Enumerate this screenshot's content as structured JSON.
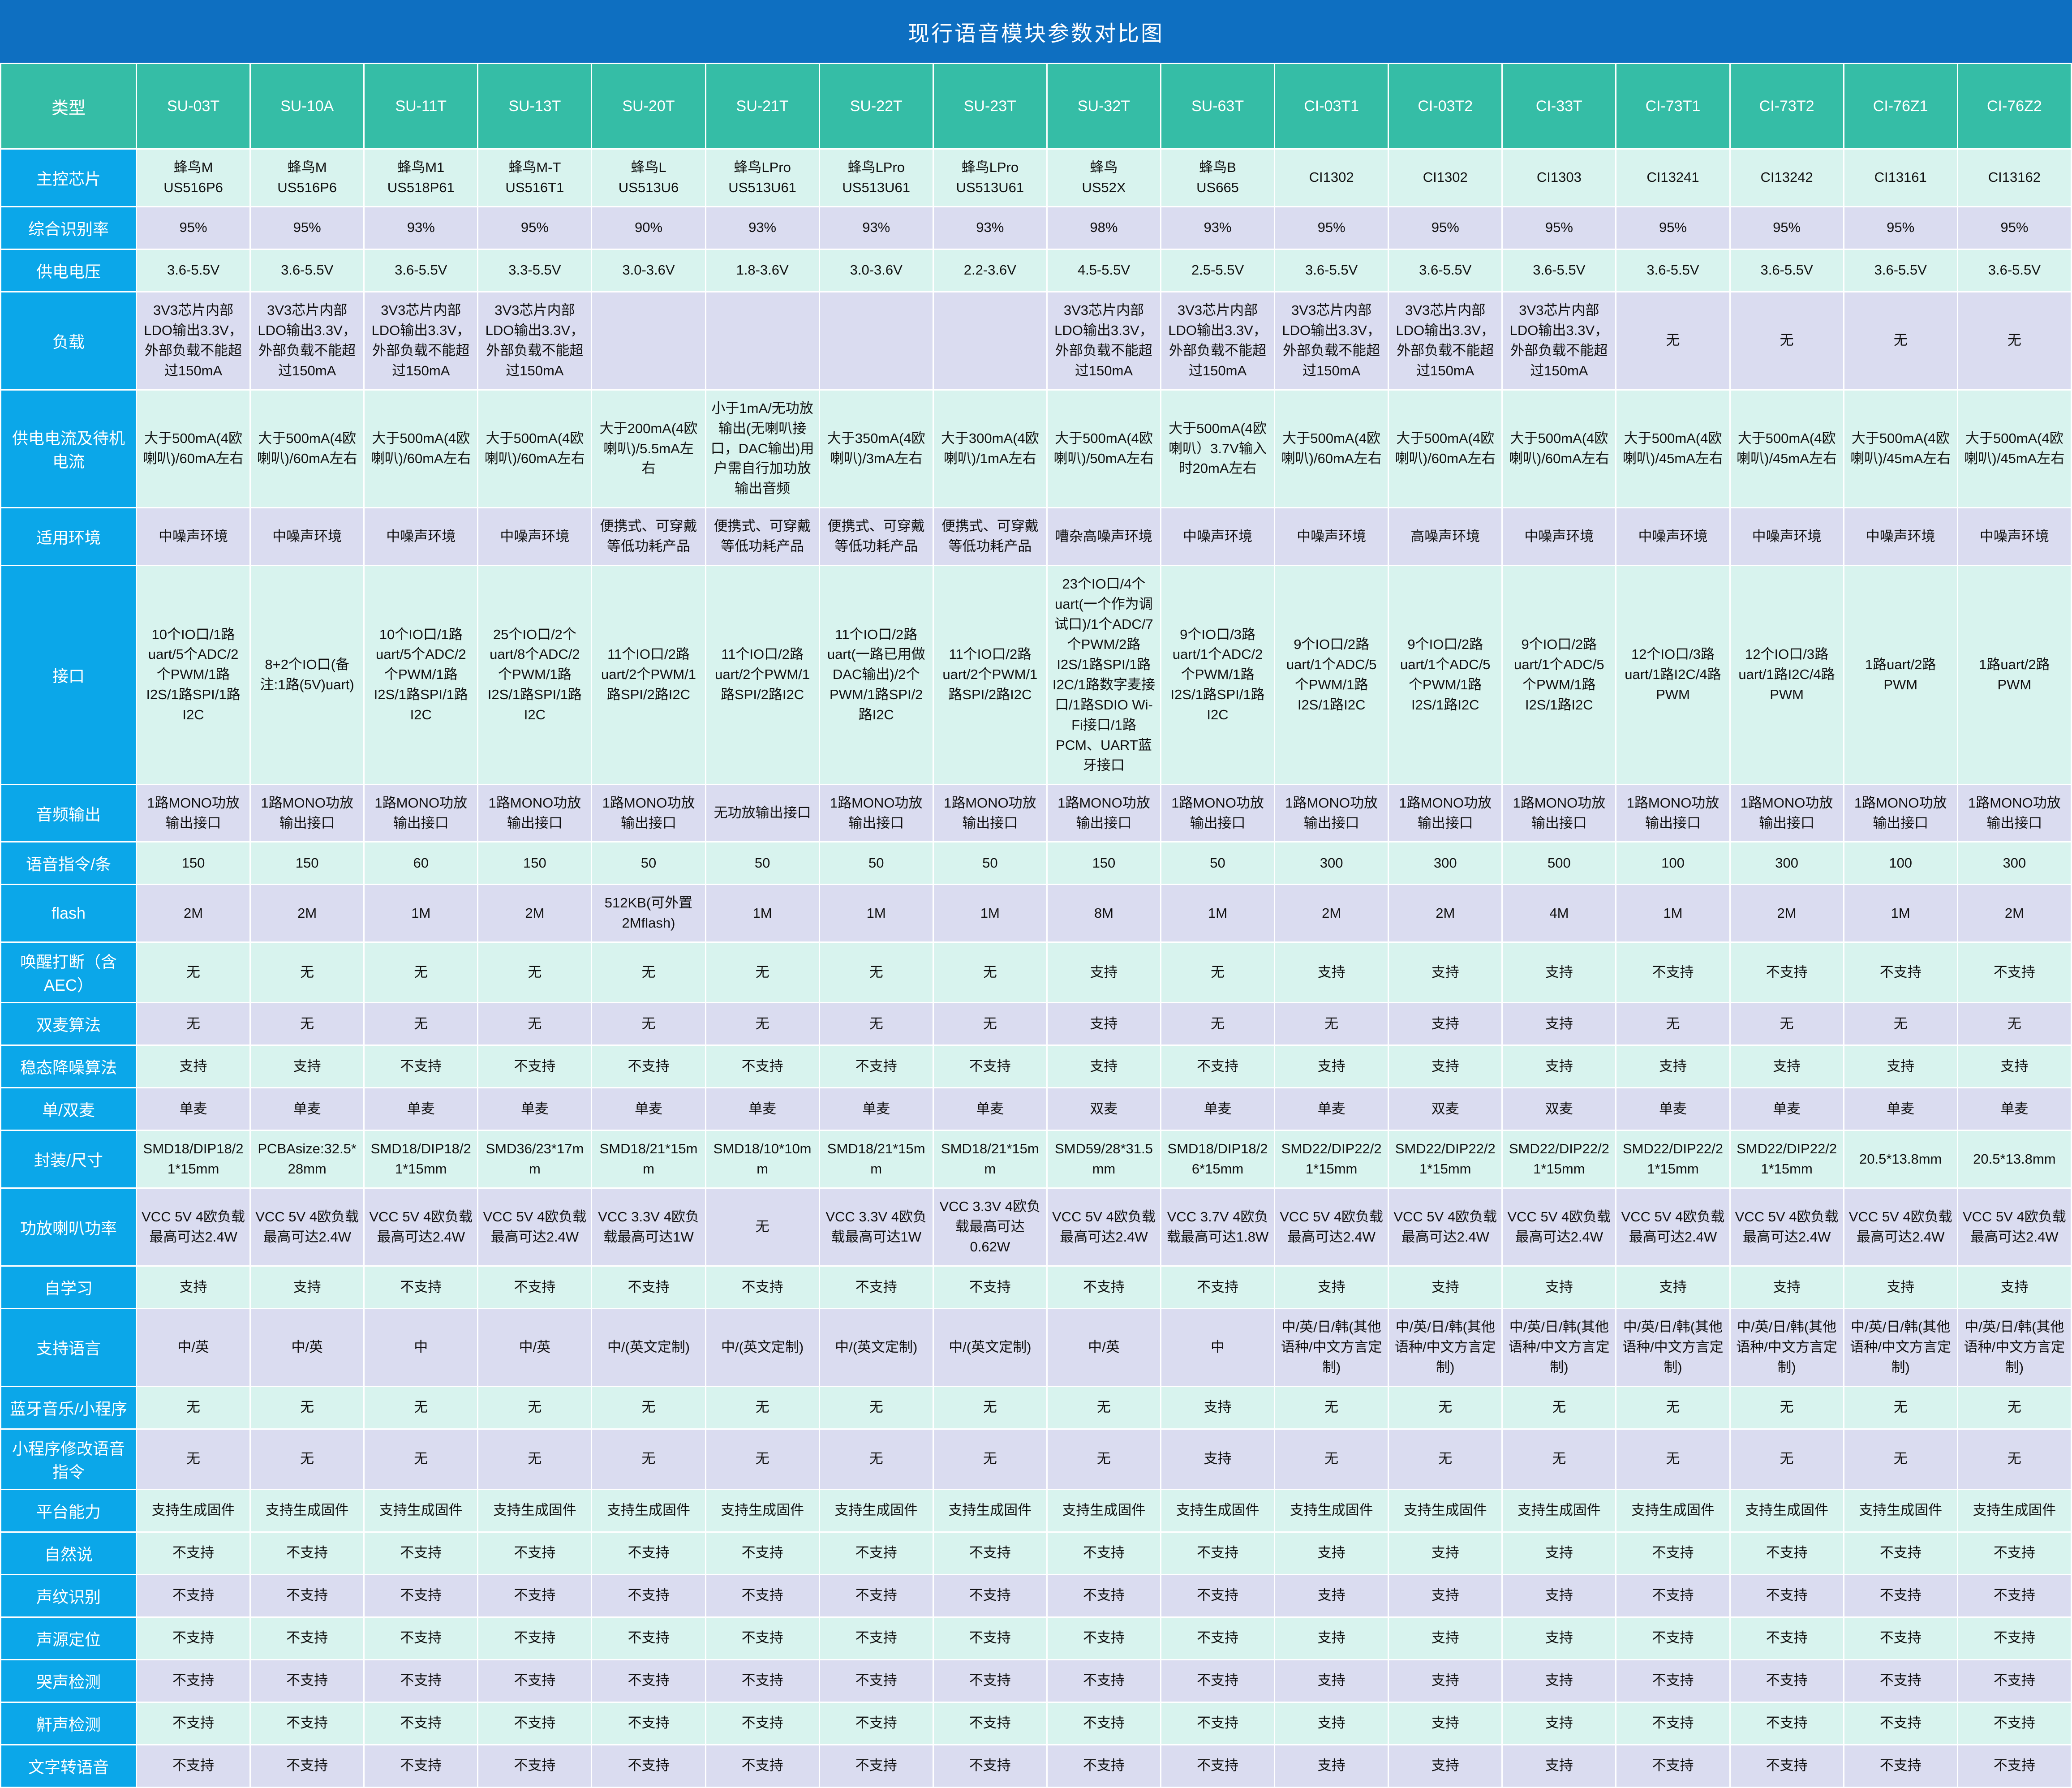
{
  "title": "现行语音模块参数对比图",
  "colors": {
    "title_bar": "#0e6fc1",
    "header": "#35bda6",
    "label_col": "#0ba7e9",
    "row_mint": "#d8f3ee",
    "row_lavender": "#dadcf0",
    "grid": "#ffffff",
    "cell_text": "#111111"
  },
  "table": {
    "corner_label": "类型",
    "columns": [
      "SU-03T",
      "SU-10A",
      "SU-11T",
      "SU-13T",
      "SU-20T",
      "SU-21T",
      "SU-22T",
      "SU-23T",
      "SU-32T",
      "SU-63T",
      "CI-03T1",
      "CI-03T2",
      "CI-33T",
      "CI-73T1",
      "CI-73T2",
      "CI-76Z1",
      "CI-76Z2"
    ],
    "rows": [
      {
        "key": "main-chip",
        "label": "主控芯片",
        "shade": "mint",
        "cells": [
          "蜂鸟M\nUS516P6",
          "蜂鸟M\nUS516P6",
          "蜂鸟M1\nUS518P61",
          "蜂鸟M-T\nUS516T1",
          "蜂鸟L\nUS513U6",
          "蜂鸟LPro\nUS513U61",
          "蜂鸟LPro\nUS513U61",
          "蜂鸟LPro\nUS513U61",
          "蜂鸟\nUS52X",
          "蜂鸟B\nUS665",
          "CI1302",
          "CI1302",
          "CI1303",
          "CI13241",
          "CI13242",
          "CI13161",
          "CI13162"
        ]
      },
      {
        "key": "recognition-rate",
        "label": "综合识别率",
        "shade": "lavender",
        "cells": [
          "95%",
          "95%",
          "93%",
          "95%",
          "90%",
          "93%",
          "93%",
          "93%",
          "98%",
          "93%",
          "95%",
          "95%",
          "95%",
          "95%",
          "95%",
          "95%",
          "95%"
        ]
      },
      {
        "key": "supply-voltage",
        "label": "供电电压",
        "shade": "mint",
        "cells": [
          "3.6-5.5V",
          "3.6-5.5V",
          "3.6-5.5V",
          "3.3-5.5V",
          "3.0-3.6V",
          "1.8-3.6V",
          "3.0-3.6V",
          "2.2-3.6V",
          "4.5-5.5V",
          "2.5-5.5V",
          "3.6-5.5V",
          "3.6-5.5V",
          "3.6-5.5V",
          "3.6-5.5V",
          "3.6-5.5V",
          "3.6-5.5V",
          "3.6-5.5V"
        ]
      },
      {
        "key": "load",
        "label": "负载",
        "shade": "lavender",
        "cells": [
          "3V3芯片内部LDO输出3.3V，外部负载不能超过150mA",
          "3V3芯片内部LDO输出3.3V，外部负载不能超过150mA",
          "3V3芯片内部LDO输出3.3V，外部负载不能超过150mA",
          "3V3芯片内部LDO输出3.3V，外部负载不能超过150mA",
          "",
          "",
          "",
          "",
          "3V3芯片内部LDO输出3.3V，外部负载不能超过150mA",
          "3V3芯片内部LDO输出3.3V，外部负载不能超过150mA",
          "3V3芯片内部LDO输出3.3V，外部负载不能超过150mA",
          "3V3芯片内部LDO输出3.3V，外部负载不能超过150mA",
          "3V3芯片内部LDO输出3.3V，外部负载不能超过150mA",
          "无",
          "无",
          "无",
          "无"
        ]
      },
      {
        "key": "supply-current",
        "label": "供电电流及待机电流",
        "shade": "mint",
        "cells": [
          "大于500mA(4欧喇叭)/60mA左右",
          "大于500mA(4欧喇叭)/60mA左右",
          "大于500mA(4欧喇叭)/60mA左右",
          "大于500mA(4欧喇叭)/60mA左右",
          "大于200mA(4欧喇叭)/5.5mA左右",
          "小于1mA/无功放输出(无喇叭接口，DAC输出)用户需自行加功放输出音频",
          "大于350mA(4欧喇叭)/3mA左右",
          "大于300mA(4欧喇叭)/1mA左右",
          "大于500mA(4欧喇叭)/50mA左右",
          "大于500mA(4欧喇叭）3.7V输入时20mA左右",
          "大于500mA(4欧喇叭)/60mA左右",
          "大于500mA(4欧喇叭)/60mA左右",
          "大于500mA(4欧喇叭)/60mA左右",
          "大于500mA(4欧喇叭)/45mA左右",
          "大于500mA(4欧喇叭)/45mA左右",
          "大于500mA(4欧喇叭)/45mA左右",
          "大于500mA(4欧喇叭)/45mA左右"
        ]
      },
      {
        "key": "environment",
        "label": "适用环境",
        "shade": "lavender",
        "cells": [
          "中噪声环境",
          "中噪声环境",
          "中噪声环境",
          "中噪声环境",
          "便携式、可穿戴等低功耗产品",
          "便携式、可穿戴等低功耗产品",
          "便携式、可穿戴等低功耗产品",
          "便携式、可穿戴等低功耗产品",
          "嘈杂高噪声环境",
          "中噪声环境",
          "中噪声环境",
          "高噪声环境",
          "中噪声环境",
          "中噪声环境",
          "中噪声环境",
          "中噪声环境",
          "中噪声环境"
        ]
      },
      {
        "key": "interfaces",
        "label": "接口",
        "shade": "mint",
        "cells": [
          "10个IO口/1路uart/5个ADC/2个PWM/1路I2S/1路SPI/1路I2C",
          "8+2个IO口(备注:1路(5V)uart)",
          "10个IO口/1路uart/5个ADC/2个PWM/1路I2S/1路SPI/1路I2C",
          "25个IO口/2个uart/8个ADC/2个PWM/1路I2S/1路SPI/1路I2C",
          "11个IO口/2路uart/2个PWM/1路SPI/2路I2C",
          "11个IO口/2路uart/2个PWM/1路SPI/2路I2C",
          "11个IO口/2路uart(一路已用做DAC输出)/2个PWM/1路SPI/2路I2C",
          "11个IO口/2路uart/2个PWM/1路SPI/2路I2C",
          "23个IO口/4个uart(一个作为调试口)/1个ADC/7个PWM/2路I2S/1路SPI/1路I2C/1路数字麦接口/1路SDIO Wi-Fi接口/1路PCM、UART蓝牙接口",
          "9个IO口/3路uart/1个ADC/2个PWM/1路I2S/1路SPI/1路I2C",
          "9个IO口/2路uart/1个ADC/5个PWM/1路I2S/1路I2C",
          "9个IO口/2路uart/1个ADC/5个PWM/1路I2S/1路I2C",
          "9个IO口/2路uart/1个ADC/5个PWM/1路I2S/1路I2C",
          "12个IO口/3路uart/1路I2C/4路PWM",
          "12个IO口/3路uart/1路I2C/4路PWM",
          "1路uart/2路PWM",
          "1路uart/2路PWM"
        ]
      },
      {
        "key": "audio-output",
        "label": "音频输出",
        "shade": "lavender",
        "cells": [
          "1路MONO功放输出接口",
          "1路MONO功放输出接口",
          "1路MONO功放输出接口",
          "1路MONO功放输出接口",
          "1路MONO功放输出接口",
          "无功放输出接口",
          "1路MONO功放输出接口",
          "1路MONO功放输出接口",
          "1路MONO功放输出接口",
          "1路MONO功放输出接口",
          "1路MONO功放输出接口",
          "1路MONO功放输出接口",
          "1路MONO功放输出接口",
          "1路MONO功放输出接口",
          "1路MONO功放输出接口",
          "1路MONO功放输出接口",
          "1路MONO功放输出接口"
        ]
      },
      {
        "key": "voice-commands",
        "label": "语音指令/条",
        "shade": "mint",
        "cells": [
          "150",
          "150",
          "60",
          "150",
          "50",
          "50",
          "50",
          "50",
          "150",
          "50",
          "300",
          "300",
          "500",
          "100",
          "300",
          "100",
          "300"
        ]
      },
      {
        "key": "flash",
        "label": "flash",
        "shade": "lavender",
        "cells": [
          "2M",
          "2M",
          "1M",
          "2M",
          "512KB(可外置2Mflash)",
          "1M",
          "1M",
          "1M",
          "8M",
          "1M",
          "2M",
          "2M",
          "4M",
          "1M",
          "2M",
          "1M",
          "2M"
        ]
      },
      {
        "key": "wake-interrupt-aec",
        "label": "唤醒打断（含AEC）",
        "shade": "mint",
        "cells": [
          "无",
          "无",
          "无",
          "无",
          "无",
          "无",
          "无",
          "无",
          "支持",
          "无",
          "支持",
          "支持",
          "支持",
          "不支持",
          "不支持",
          "不支持",
          "不支持"
        ]
      },
      {
        "key": "dual-mic-algorithm",
        "label": "双麦算法",
        "shade": "lavender",
        "cells": [
          "无",
          "无",
          "无",
          "无",
          "无",
          "无",
          "无",
          "无",
          "支持",
          "无",
          "无",
          "支持",
          "支持",
          "无",
          "无",
          "无",
          "无"
        ]
      },
      {
        "key": "noise-reduction",
        "label": "稳态降噪算法",
        "shade": "mint",
        "cells": [
          "支持",
          "支持",
          "不支持",
          "不支持",
          "不支持",
          "不支持",
          "不支持",
          "不支持",
          "支持",
          "不支持",
          "支持",
          "支持",
          "支持",
          "支持",
          "支持",
          "支持",
          "支持"
        ]
      },
      {
        "key": "mic-count",
        "label": "单/双麦",
        "shade": "lavender",
        "cells": [
          "单麦",
          "单麦",
          "单麦",
          "单麦",
          "单麦",
          "单麦",
          "单麦",
          "单麦",
          "双麦",
          "单麦",
          "单麦",
          "双麦",
          "双麦",
          "单麦",
          "单麦",
          "单麦",
          "单麦"
        ]
      },
      {
        "key": "package-size",
        "label": "封装/尺寸",
        "shade": "mint",
        "cells": [
          "SMD18/DIP18/21*15mm",
          "PCBAsize:32.5*28mm",
          "SMD18/DIP18/21*15mm",
          "SMD36/23*17mm",
          "SMD18/21*15mm",
          "SMD18/10*10mm",
          "SMD18/21*15mm",
          "SMD18/21*15mm",
          "SMD59/28*31.5mm",
          "SMD18/DIP18/26*15mm",
          "SMD22/DIP22/21*15mm",
          "SMD22/DIP22/21*15mm",
          "SMD22/DIP22/21*15mm",
          "SMD22/DIP22/21*15mm",
          "SMD22/DIP22/21*15mm",
          "20.5*13.8mm",
          "20.5*13.8mm"
        ]
      },
      {
        "key": "amp-speaker-power",
        "label": "功放喇叭功率",
        "shade": "lavender",
        "cells": [
          "VCC 5V 4欧负载最高可达2.4W",
          "VCC 5V 4欧负载最高可达2.4W",
          "VCC 5V 4欧负载最高可达2.4W",
          "VCC 5V 4欧负载最高可达2.4W",
          "VCC 3.3V 4欧负载最高可达1W",
          "无",
          "VCC 3.3V 4欧负载最高可达1W",
          "VCC 3.3V 4欧负载最高可达0.62W",
          "VCC 5V 4欧负载最高可达2.4W",
          "VCC 3.7V 4欧负载最高可达1.8W",
          "VCC 5V 4欧负载最高可达2.4W",
          "VCC 5V 4欧负载最高可达2.4W",
          "VCC 5V 4欧负载最高可达2.4W",
          "VCC 5V 4欧负载最高可达2.4W",
          "VCC 5V 4欧负载最高可达2.4W",
          "VCC 5V 4欧负载最高可达2.4W",
          "VCC 5V 4欧负载最高可达2.4W"
        ]
      },
      {
        "key": "self-learning",
        "label": "自学习",
        "shade": "mint",
        "cells": [
          "支持",
          "支持",
          "不支持",
          "不支持",
          "不支持",
          "不支持",
          "不支持",
          "不支持",
          "不支持",
          "不支持",
          "支持",
          "支持",
          "支持",
          "支持",
          "支持",
          "支持",
          "支持"
        ]
      },
      {
        "key": "languages",
        "label": "支持语言",
        "shade": "lavender",
        "cells": [
          "中/英",
          "中/英",
          "中",
          "中/英",
          "中/(英文定制)",
          "中/(英文定制)",
          "中/(英文定制)",
          "中/(英文定制)",
          "中/英",
          "中",
          "中/英/日/韩(其他语种/中文方言定制)",
          "中/英/日/韩(其他语种/中文方言定制)",
          "中/英/日/韩(其他语种/中文方言定制)",
          "中/英/日/韩(其他语种/中文方言定制)",
          "中/英/日/韩(其他语种/中文方言定制)",
          "中/英/日/韩(其他语种/中文方言定制)",
          "中/英/日/韩(其他语种/中文方言定制)"
        ]
      },
      {
        "key": "bluetooth-miniprogram",
        "label": "蓝牙音乐/小程序",
        "shade": "mint",
        "cells": [
          "无",
          "无",
          "无",
          "无",
          "无",
          "无",
          "无",
          "无",
          "无",
          "支持",
          "无",
          "无",
          "无",
          "无",
          "无",
          "无",
          "无"
        ]
      },
      {
        "key": "miniprogram-edit-commands",
        "label": "小程序修改语音指令",
        "shade": "lavender",
        "cells": [
          "无",
          "无",
          "无",
          "无",
          "无",
          "无",
          "无",
          "无",
          "无",
          "支持",
          "无",
          "无",
          "无",
          "无",
          "无",
          "无",
          "无"
        ]
      },
      {
        "key": "platform-capability",
        "label": "平台能力",
        "shade": "mint",
        "cells": [
          "支持生成固件",
          "支持生成固件",
          "支持生成固件",
          "支持生成固件",
          "支持生成固件",
          "支持生成固件",
          "支持生成固件",
          "支持生成固件",
          "支持生成固件",
          "支持生成固件",
          "支持生成固件",
          "支持生成固件",
          "支持生成固件",
          "支持生成固件",
          "支持生成固件",
          "支持生成固件",
          "支持生成固件"
        ]
      },
      {
        "key": "natural-speech",
        "label": "自然说",
        "shade": "mint",
        "cells": [
          "不支持",
          "不支持",
          "不支持",
          "不支持",
          "不支持",
          "不支持",
          "不支持",
          "不支持",
          "不支持",
          "不支持",
          "支持",
          "支持",
          "支持",
          "不支持",
          "不支持",
          "不支持",
          "不支持"
        ]
      },
      {
        "key": "voiceprint",
        "label": "声纹识别",
        "shade": "lavender",
        "cells": [
          "不支持",
          "不支持",
          "不支持",
          "不支持",
          "不支持",
          "不支持",
          "不支持",
          "不支持",
          "不支持",
          "不支持",
          "支持",
          "支持",
          "支持",
          "不支持",
          "不支持",
          "不支持",
          "不支持"
        ]
      },
      {
        "key": "sound-source-localization",
        "label": "声源定位",
        "shade": "mint",
        "cells": [
          "不支持",
          "不支持",
          "不支持",
          "不支持",
          "不支持",
          "不支持",
          "不支持",
          "不支持",
          "不支持",
          "不支持",
          "支持",
          "支持",
          "支持",
          "不支持",
          "不支持",
          "不支持",
          "不支持"
        ]
      },
      {
        "key": "cry-detection",
        "label": "哭声检测",
        "shade": "lavender",
        "cells": [
          "不支持",
          "不支持",
          "不支持",
          "不支持",
          "不支持",
          "不支持",
          "不支持",
          "不支持",
          "不支持",
          "不支持",
          "支持",
          "支持",
          "支持",
          "不支持",
          "不支持",
          "不支持",
          "不支持"
        ]
      },
      {
        "key": "snore-detection",
        "label": "鼾声检测",
        "shade": "mint",
        "cells": [
          "不支持",
          "不支持",
          "不支持",
          "不支持",
          "不支持",
          "不支持",
          "不支持",
          "不支持",
          "不支持",
          "不支持",
          "支持",
          "支持",
          "支持",
          "不支持",
          "不支持",
          "不支持",
          "不支持"
        ]
      },
      {
        "key": "text-to-speech",
        "label": "文字转语音",
        "shade": "lavender",
        "cells": [
          "不支持",
          "不支持",
          "不支持",
          "不支持",
          "不支持",
          "不支持",
          "不支持",
          "不支持",
          "不支持",
          "不支持",
          "支持",
          "支持",
          "支持",
          "不支持",
          "不支持",
          "不支持",
          "不支持"
        ]
      }
    ]
  }
}
